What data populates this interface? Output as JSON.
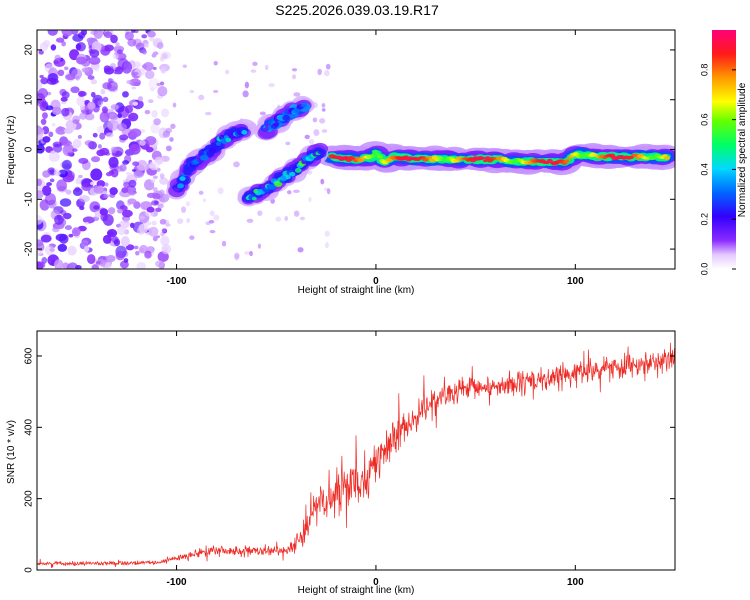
{
  "title": "S225.2026.039.03.19.R17",
  "colors": {
    "snr_line": "#ee2a24",
    "axis": "#000000",
    "background": "#ffffff"
  },
  "chart_data": [
    {
      "type": "heatmap",
      "xlabel": "Height of straight line (km)",
      "ylabel": "Frequency (Hz)",
      "xlim": [
        -170,
        150
      ],
      "ylim": [
        -24,
        24
      ],
      "xticks": [
        -100,
        0,
        100
      ],
      "yticks": [
        -20,
        -10,
        0,
        10,
        20
      ],
      "colorbar": {
        "label": "Normalized spectral amplitude",
        "range": [
          0,
          0.96
        ],
        "ticks": [
          0.0,
          0.2,
          0.4,
          0.6,
          0.8
        ],
        "colormap": "rainbow: white-violet-purple-blue-cyan-green-yellow-orange-red-magenta"
      },
      "ridges": [
        {
          "name": "main-ridge",
          "x": [
            -22,
            -10,
            -2,
            0,
            4,
            8,
            20,
            40,
            60,
            75,
            85,
            95,
            100,
            120,
            147
          ],
          "y": [
            -1.5,
            -2,
            -1.5,
            -0.5,
            -2.5,
            -1.5,
            -1.8,
            -2,
            -2,
            -2.5,
            -2.5,
            -2.5,
            -1,
            -1.5,
            -1.5
          ],
          "amplitude": 0.85
        },
        {
          "name": "lower-branch",
          "x": [
            -64,
            -56,
            -48,
            -40,
            -34,
            -28
          ],
          "y": [
            -10,
            -8,
            -6,
            -4,
            -2,
            -0.5
          ],
          "amplitude": 0.45
        },
        {
          "name": "upper-branch",
          "x": [
            -100,
            -92,
            -85,
            -78,
            -72,
            -66
          ],
          "y": [
            -8,
            -3,
            -1,
            1.5,
            3,
            4
          ],
          "amplitude": 0.35
        },
        {
          "name": "upper-right-branch",
          "x": [
            -55,
            -48,
            -40,
            -36
          ],
          "y": [
            4,
            6,
            8,
            9
          ],
          "amplitude": 0.25
        }
      ],
      "noise_region": {
        "x": [
          -170,
          -105
        ],
        "description": "scattered low-amplitude speckle"
      }
    },
    {
      "type": "line",
      "xlabel": "Height of straight line (km)",
      "ylabel": "SNR (10 * v/v)",
      "xlim": [
        -170,
        150
      ],
      "ylim": [
        0,
        670
      ],
      "xticks": [
        -100,
        0,
        100
      ],
      "yticks": [
        0,
        200,
        400,
        600
      ],
      "series": [
        {
          "name": "SNR",
          "color": "#ee2a24",
          "envelope_x": [
            -170,
            -110,
            -95,
            -80,
            -60,
            -45,
            -38,
            -30,
            -20,
            -10,
            0,
            10,
            20,
            30,
            50,
            70,
            90,
            110,
            130,
            150
          ],
          "envelope_mean": [
            18,
            20,
            40,
            55,
            50,
            55,
            90,
            180,
            210,
            250,
            300,
            370,
            430,
            480,
            510,
            520,
            540,
            560,
            580,
            590
          ],
          "envelope_spread": [
            10,
            10,
            20,
            30,
            25,
            25,
            60,
            120,
            130,
            120,
            100,
            90,
            70,
            60,
            60,
            60,
            60,
            60,
            60,
            60
          ]
        }
      ]
    }
  ]
}
